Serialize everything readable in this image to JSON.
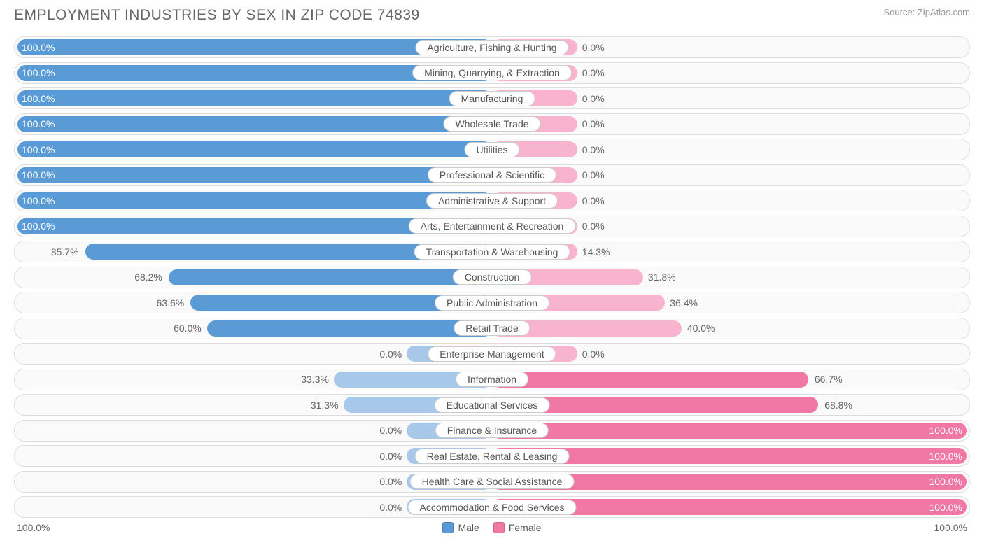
{
  "title": "EMPLOYMENT INDUSTRIES BY SEX IN ZIP CODE 74839",
  "source": "Source: ZipAtlas.com",
  "colors": {
    "male": "#5b9bd5",
    "female": "#f178a5",
    "male_light": "#a8c8ea",
    "female_light": "#f8b4cf",
    "row_border": "#dddddd",
    "row_bg": "#fafafa",
    "text": "#666666"
  },
  "legend": {
    "male": "Male",
    "female": "Female"
  },
  "axis": {
    "left": "100.0%",
    "right": "100.0%"
  },
  "min_bar_pct": 18,
  "rows": [
    {
      "label": "Agriculture, Fishing & Hunting",
      "male": 100.0,
      "female": 0.0
    },
    {
      "label": "Mining, Quarrying, & Extraction",
      "male": 100.0,
      "female": 0.0
    },
    {
      "label": "Manufacturing",
      "male": 100.0,
      "female": 0.0
    },
    {
      "label": "Wholesale Trade",
      "male": 100.0,
      "female": 0.0
    },
    {
      "label": "Utilities",
      "male": 100.0,
      "female": 0.0
    },
    {
      "label": "Professional & Scientific",
      "male": 100.0,
      "female": 0.0
    },
    {
      "label": "Administrative & Support",
      "male": 100.0,
      "female": 0.0
    },
    {
      "label": "Arts, Entertainment & Recreation",
      "male": 100.0,
      "female": 0.0
    },
    {
      "label": "Transportation & Warehousing",
      "male": 85.7,
      "female": 14.3
    },
    {
      "label": "Construction",
      "male": 68.2,
      "female": 31.8
    },
    {
      "label": "Public Administration",
      "male": 63.6,
      "female": 36.4
    },
    {
      "label": "Retail Trade",
      "male": 60.0,
      "female": 40.0
    },
    {
      "label": "Enterprise Management",
      "male": 0.0,
      "female": 0.0
    },
    {
      "label": "Information",
      "male": 33.3,
      "female": 66.7
    },
    {
      "label": "Educational Services",
      "male": 31.3,
      "female": 68.8
    },
    {
      "label": "Finance & Insurance",
      "male": 0.0,
      "female": 100.0
    },
    {
      "label": "Real Estate, Rental & Leasing",
      "male": 0.0,
      "female": 100.0
    },
    {
      "label": "Health Care & Social Assistance",
      "male": 0.0,
      "female": 100.0
    },
    {
      "label": "Accommodation & Food Services",
      "male": 0.0,
      "female": 100.0
    }
  ]
}
